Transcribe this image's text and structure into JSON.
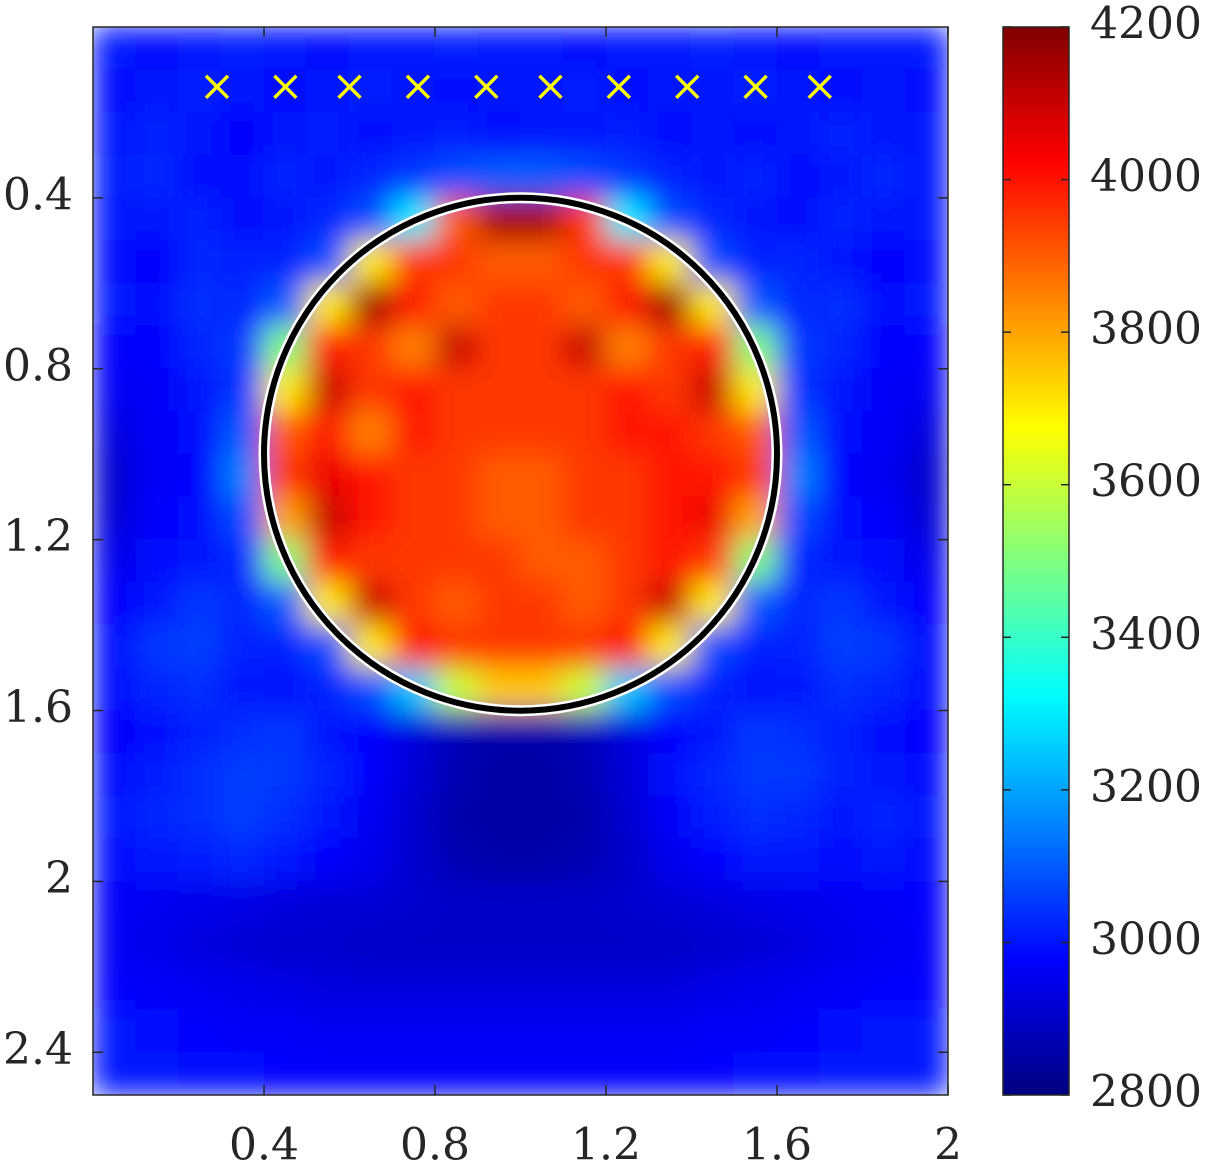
{
  "chart_data": {
    "type": "heatmap",
    "xlim": [
      0,
      2
    ],
    "ylim": [
      0,
      2.5
    ],
    "xticks": [
      0.4,
      0.8,
      1.2,
      1.6,
      2
    ],
    "yticks": [
      0.4,
      0.8,
      1.2,
      1.6,
      2,
      2.4
    ],
    "x": [
      0.05,
      0.15,
      0.25,
      0.35,
      0.45,
      0.55,
      0.65,
      0.75,
      0.85,
      0.95,
      1.05,
      1.15,
      1.25,
      1.35,
      1.45,
      1.55,
      1.65,
      1.75,
      1.85,
      1.95
    ],
    "y": [
      0.05,
      0.15,
      0.25,
      0.35,
      0.45,
      0.55,
      0.65,
      0.75,
      0.85,
      0.95,
      1.05,
      1.15,
      1.25,
      1.35,
      1.45,
      1.55,
      1.65,
      1.75,
      1.85,
      1.95,
      2.05,
      2.15,
      2.25,
      2.35,
      2.45
    ],
    "z": [
      [
        3000,
        2990,
        3000,
        3010,
        3000,
        2990,
        3000,
        3000,
        3010,
        3000,
        3000,
        2990,
        3000,
        3000,
        3010,
        3000,
        2990,
        3000,
        3000,
        3000
      ],
      [
        2990,
        3000,
        3010,
        3000,
        2990,
        3000,
        3010,
        3000,
        2990,
        3000,
        3000,
        3010,
        2990,
        3000,
        3000,
        3010,
        3000,
        2990,
        3000,
        2990
      ],
      [
        3000,
        3020,
        3000,
        2980,
        3000,
        3010,
        2990,
        3000,
        3010,
        2990,
        3000,
        3000,
        3010,
        2990,
        3000,
        2990,
        3000,
        3020,
        3000,
        3000
      ],
      [
        3010,
        3030,
        2990,
        2990,
        3020,
        3000,
        3030,
        3050,
        3080,
        3100,
        3100,
        3080,
        3050,
        3020,
        3000,
        3020,
        2990,
        3000,
        3030,
        3000
      ],
      [
        3000,
        3000,
        3020,
        2990,
        3000,
        3030,
        3080,
        3300,
        3900,
        4150,
        4150,
        3950,
        3300,
        3080,
        3030,
        3000,
        2990,
        3020,
        3000,
        3000
      ],
      [
        2990,
        2980,
        3030,
        3020,
        3020,
        3080,
        3700,
        3950,
        3950,
        3900,
        3900,
        3950,
        3950,
        3700,
        3080,
        3020,
        3030,
        3000,
        2980,
        2990
      ],
      [
        3000,
        2990,
        3040,
        3030,
        3100,
        3700,
        4150,
        4000,
        3900,
        3950,
        3950,
        3900,
        4000,
        4150,
        3700,
        3100,
        3030,
        3040,
        2990,
        3000
      ],
      [
        2980,
        2980,
        3030,
        3050,
        3500,
        4000,
        3950,
        3850,
        4100,
        3950,
        3950,
        4100,
        3850,
        3950,
        4000,
        3500,
        3050,
        3030,
        2980,
        2980
      ],
      [
        2960,
        2970,
        3000,
        3050,
        3700,
        4100,
        3950,
        4000,
        3950,
        3950,
        3950,
        3950,
        4000,
        3950,
        4100,
        3700,
        3050,
        3000,
        2970,
        2960
      ],
      [
        2930,
        2970,
        2990,
        3100,
        3900,
        4000,
        3850,
        4000,
        3950,
        3950,
        3950,
        3950,
        4000,
        4000,
        3950,
        3900,
        3100,
        2990,
        2970,
        2930
      ],
      [
        2910,
        2970,
        2980,
        3150,
        3950,
        4050,
        4000,
        3950,
        3950,
        3900,
        3900,
        3950,
        3950,
        4000,
        4000,
        3950,
        3150,
        2980,
        2960,
        2910
      ],
      [
        2920,
        2980,
        2990,
        3080,
        3800,
        4100,
        4000,
        3950,
        3950,
        3900,
        3900,
        3950,
        3950,
        4000,
        4050,
        3800,
        3080,
        2990,
        2980,
        2920
      ],
      [
        2950,
        2990,
        3000,
        3030,
        3500,
        4000,
        3950,
        3950,
        3950,
        3950,
        3900,
        3900,
        3950,
        4000,
        3950,
        3500,
        3030,
        3000,
        2990,
        2950
      ],
      [
        2980,
        3000,
        3050,
        3030,
        3100,
        3700,
        4100,
        3950,
        3900,
        3950,
        3950,
        3900,
        3950,
        4100,
        3700,
        3100,
        3030,
        3050,
        3000,
        2980
      ],
      [
        2990,
        3050,
        3060,
        3020,
        3020,
        3080,
        3700,
        4000,
        3950,
        3950,
        3950,
        3950,
        4000,
        3700,
        3080,
        3020,
        3020,
        3060,
        3050,
        2990
      ],
      [
        2990,
        3030,
        3040,
        3000,
        2990,
        3020,
        3080,
        3250,
        3600,
        3750,
        3750,
        3600,
        3250,
        3080,
        3020,
        2990,
        3000,
        3040,
        3030,
        2990
      ],
      [
        2980,
        2990,
        3020,
        3040,
        3050,
        3000,
        2980,
        2930,
        2880,
        2860,
        2860,
        2880,
        2930,
        2980,
        3000,
        3050,
        3040,
        3020,
        2990,
        2980
      ],
      [
        2990,
        3010,
        3040,
        3060,
        3050,
        3020,
        2980,
        2920,
        2870,
        2850,
        2850,
        2870,
        2920,
        2990,
        3030,
        3050,
        3050,
        3020,
        3000,
        2990
      ],
      [
        3000,
        3030,
        3040,
        3060,
        3040,
        3000,
        2960,
        2910,
        2860,
        2850,
        2850,
        2860,
        2910,
        2970,
        3010,
        3040,
        3030,
        3000,
        3020,
        3000
      ],
      [
        2990,
        3000,
        3010,
        3030,
        3000,
        2980,
        2950,
        2910,
        2870,
        2860,
        2860,
        2870,
        2900,
        2950,
        2980,
        3000,
        3000,
        2990,
        3000,
        2990
      ],
      [
        2970,
        2960,
        2950,
        2940,
        2930,
        2920,
        2920,
        2910,
        2900,
        2900,
        2900,
        2900,
        2910,
        2920,
        2930,
        2940,
        2950,
        2960,
        2970,
        2980
      ],
      [
        2960,
        2950,
        2930,
        2920,
        2910,
        2910,
        2900,
        2900,
        2900,
        2900,
        2900,
        2900,
        2900,
        2900,
        2910,
        2920,
        2930,
        2950,
        2960,
        2970
      ],
      [
        2980,
        2970,
        2960,
        2950,
        2940,
        2930,
        2930,
        2930,
        2930,
        2930,
        2930,
        2930,
        2930,
        2930,
        2940,
        2950,
        2960,
        2970,
        2980,
        2980
      ],
      [
        3000,
        2990,
        2980,
        2970,
        2970,
        2960,
        2960,
        2960,
        2960,
        2960,
        2960,
        2960,
        2960,
        2960,
        2970,
        2970,
        2980,
        2990,
        3000,
        3000
      ],
      [
        3000,
        3000,
        2990,
        2990,
        2980,
        2980,
        2980,
        2980,
        2980,
        2980,
        2980,
        2980,
        2980,
        2980,
        2980,
        2990,
        2990,
        3000,
        3000,
        3000
      ]
    ],
    "clim": [
      2800,
      4200
    ],
    "cticks": [
      2800,
      3000,
      3200,
      3400,
      3600,
      3800,
      4000,
      4200
    ],
    "colormap": "jet",
    "sensors": {
      "x": [
        0.29,
        0.45,
        0.6,
        0.76,
        0.92,
        1.07,
        1.23,
        1.39,
        1.55,
        1.7
      ],
      "y": [
        0.14,
        0.14,
        0.14,
        0.14,
        0.14,
        0.14,
        0.14,
        0.14,
        0.14,
        0.14
      ],
      "color": "#ffff00"
    },
    "circle": {
      "center": [
        1,
        1
      ],
      "radius": 0.6
    }
  }
}
